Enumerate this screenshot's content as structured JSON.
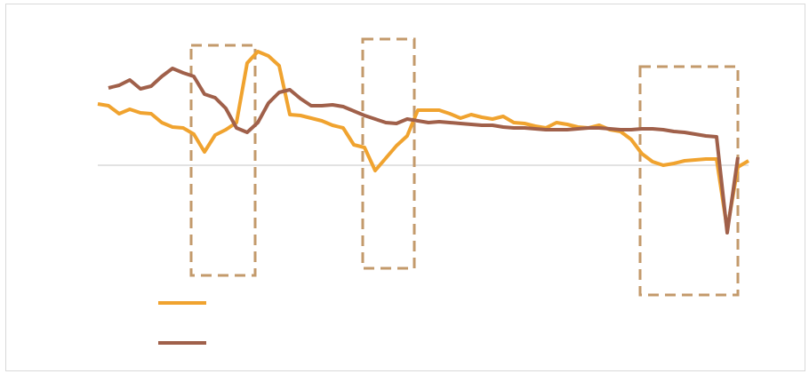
{
  "chart_data": {
    "type": "line",
    "categories": [
      null,
      null,
      null,
      null,
      null,
      null,
      null,
      null,
      null,
      null,
      null,
      null,
      null,
      null,
      null,
      null,
      null,
      null,
      null,
      null,
      null,
      null,
      null,
      null,
      null,
      null,
      null,
      null,
      null,
      null,
      null,
      null,
      null,
      null,
      null,
      null,
      null,
      null,
      null,
      null,
      null,
      null,
      null,
      null,
      null,
      null,
      null,
      null,
      null,
      null,
      null,
      null,
      null,
      null,
      null,
      null,
      null,
      null,
      null,
      null,
      null,
      null
    ],
    "series": [
      {
        "color": "#f0a32f",
        "values": [
          6.9,
          6.7,
          5.8,
          6.3,
          5.9,
          5.8,
          4.8,
          4.3,
          4.2,
          3.5,
          1.5,
          3.4,
          4.0,
          4.8,
          11.5,
          12.8,
          12.3,
          11.2,
          5.7,
          5.6,
          5.3,
          5.0,
          4.5,
          4.2,
          2.3,
          2.0,
          -0.6,
          0.8,
          2.2,
          3.3,
          6.2,
          6.2,
          6.2,
          5.8,
          5.3,
          5.7,
          5.4,
          5.2,
          5.5,
          4.8,
          4.7,
          4.4,
          4.2,
          4.8,
          4.6,
          4.3,
          4.2,
          4.5,
          4.0,
          3.8,
          2.9,
          1.3,
          0.4,
          0.0,
          0.2,
          0.5,
          0.6,
          0.7,
          0.7,
          -7.2,
          -0.2,
          0.5
        ]
      },
      {
        "color": "#a0604a",
        "values": [
          null,
          8.7,
          9.0,
          9.6,
          8.6,
          8.9,
          10.0,
          10.9,
          10.4,
          10.0,
          8.0,
          7.6,
          6.4,
          4.2,
          3.7,
          4.8,
          7.0,
          8.2,
          8.5,
          7.5,
          6.7,
          6.7,
          6.8,
          6.6,
          6.1,
          5.6,
          5.2,
          4.8,
          4.7,
          5.2,
          5.0,
          4.8,
          4.9,
          4.8,
          4.7,
          4.6,
          4.5,
          4.5,
          4.3,
          4.2,
          4.2,
          4.1,
          4.0,
          4.0,
          4.0,
          4.1,
          4.2,
          4.2,
          4.1,
          4.0,
          4.0,
          4.1,
          4.1,
          4.0,
          3.8,
          3.7,
          3.5,
          3.3,
          3.2,
          -7.6,
          0.9,
          null
        ]
      }
    ],
    "ylim": [
      -15,
      14
    ]
  }
}
